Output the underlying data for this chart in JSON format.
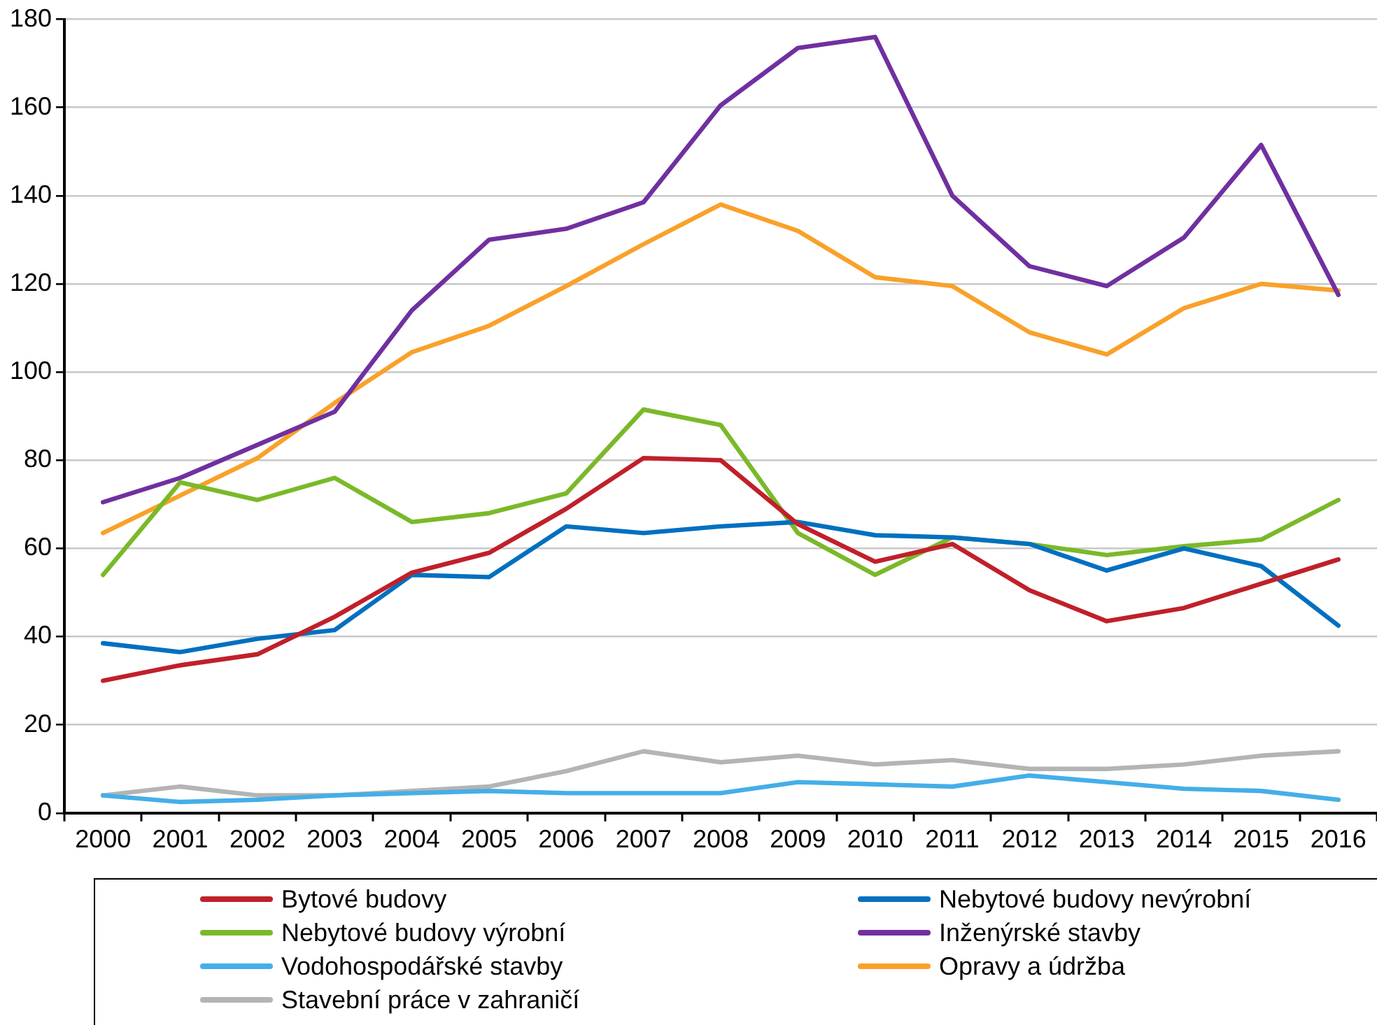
{
  "chart_data": {
    "type": "line",
    "categories": [
      "2000",
      "2001",
      "2002",
      "2003",
      "2004",
      "2005",
      "2006",
      "2007",
      "2008",
      "2009",
      "2010",
      "2011",
      "2012",
      "2013",
      "2014",
      "2015",
      "2016"
    ],
    "ylim": [
      0,
      180
    ],
    "yticks": [
      0,
      20,
      40,
      60,
      80,
      100,
      120,
      140,
      160,
      180
    ],
    "grid": "y",
    "legend": "bottom",
    "marker": "none",
    "line_style": "solid",
    "series": [
      {
        "name": "Bytové budovy",
        "color": "#c0202a",
        "values": [
          30,
          33.5,
          36,
          44.5,
          54.5,
          59,
          69,
          80.5,
          80,
          65.5,
          57,
          61,
          50.5,
          43.5,
          46.5,
          52,
          57.5
        ]
      },
      {
        "name": "Nebytové budovy nevýrobní",
        "color": "#0070c0",
        "values": [
          38.5,
          36.5,
          39.5,
          41.5,
          54,
          53.5,
          65,
          63.5,
          65,
          66,
          63,
          62.5,
          61,
          55,
          60,
          56,
          42.5
        ]
      },
      {
        "name": "Nebytové budovy výrobní",
        "color": "#7ab929",
        "values": [
          54,
          75,
          71,
          76,
          66,
          68,
          72.5,
          91.5,
          88,
          63.5,
          54,
          62.5,
          61,
          58.5,
          60.5,
          62,
          71
        ]
      },
      {
        "name": "Inženýrské stavby",
        "color": "#7030a0",
        "values": [
          70.5,
          76,
          83.5,
          91,
          114,
          130,
          132.5,
          138.5,
          160.5,
          173.5,
          176,
          140,
          124,
          119.5,
          130.5,
          151.5,
          117.5
        ]
      },
      {
        "name": "Vodohospodářské stavby",
        "color": "#45aee8",
        "values": [
          4,
          2.5,
          3,
          4,
          4.5,
          5,
          4.5,
          4.5,
          4.5,
          7,
          6.5,
          6,
          8.5,
          7,
          5.5,
          5,
          3
        ]
      },
      {
        "name": "Opravy a údržba",
        "color": "#f9a12a",
        "values": [
          63.5,
          72,
          80.5,
          93,
          104.5,
          110.5,
          119.5,
          129,
          138,
          132,
          121.5,
          119.5,
          109,
          104,
          114.5,
          120,
          118.5
        ]
      },
      {
        "name": "Stavební práce v zahraničí",
        "color": "#b4b4b4",
        "values": [
          4,
          6,
          4,
          4,
          5,
          6,
          9.5,
          14,
          11.5,
          13,
          11,
          12,
          10,
          10,
          11,
          13,
          14
        ]
      }
    ]
  }
}
